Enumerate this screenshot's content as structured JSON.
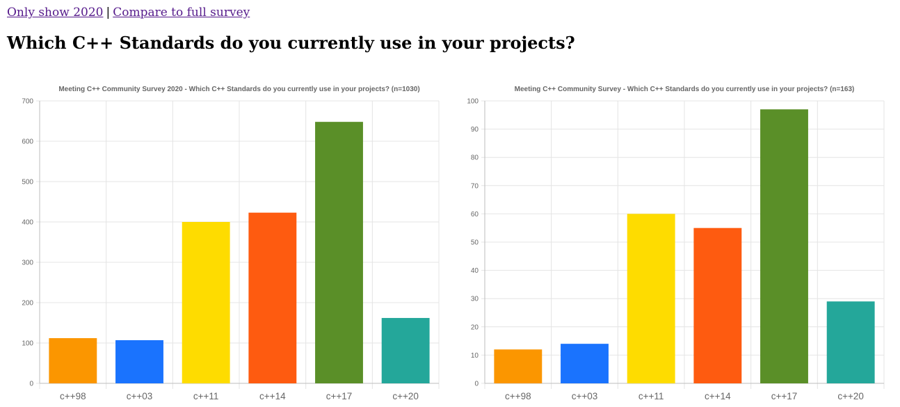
{
  "nav": {
    "link_2020": "Only show 2020",
    "separator": "|",
    "link_full": "Compare to full survey"
  },
  "page_title": "Which C++ Standards do you currently use in your projects?",
  "chart_data": [
    {
      "type": "bar",
      "title": "Meeting C++ Community Survey 2020 - Which C++ Standards do you currently use in your projects? (n=1030)",
      "categories": [
        "c++98",
        "c++03",
        "c++11",
        "c++14",
        "c++17",
        "c++20"
      ],
      "values": [
        112,
        107,
        400,
        423,
        648,
        162
      ],
      "colors": [
        "#fb9600",
        "#1a73fe",
        "#fedc00",
        "#fe5b10",
        "#5a8f28",
        "#24a79a"
      ],
      "ylim": [
        0,
        700
      ],
      "yticks": [
        0,
        100,
        200,
        300,
        400,
        500,
        600,
        700
      ],
      "grid": true,
      "legend": "none"
    },
    {
      "type": "bar",
      "title": "Meeting C++ Community Survey - Which C++ Standards do you currently use in your projects? (n=163)",
      "categories": [
        "c++98",
        "c++03",
        "c++11",
        "c++14",
        "c++17",
        "c++20"
      ],
      "values": [
        12,
        14,
        60,
        55,
        97,
        29
      ],
      "colors": [
        "#fb9600",
        "#1a73fe",
        "#fedc00",
        "#fe5b10",
        "#5a8f28",
        "#24a79a"
      ],
      "ylim": [
        0,
        100
      ],
      "yticks": [
        0,
        10,
        20,
        30,
        40,
        50,
        60,
        70,
        80,
        90,
        100
      ],
      "grid": true,
      "legend": "none"
    }
  ]
}
